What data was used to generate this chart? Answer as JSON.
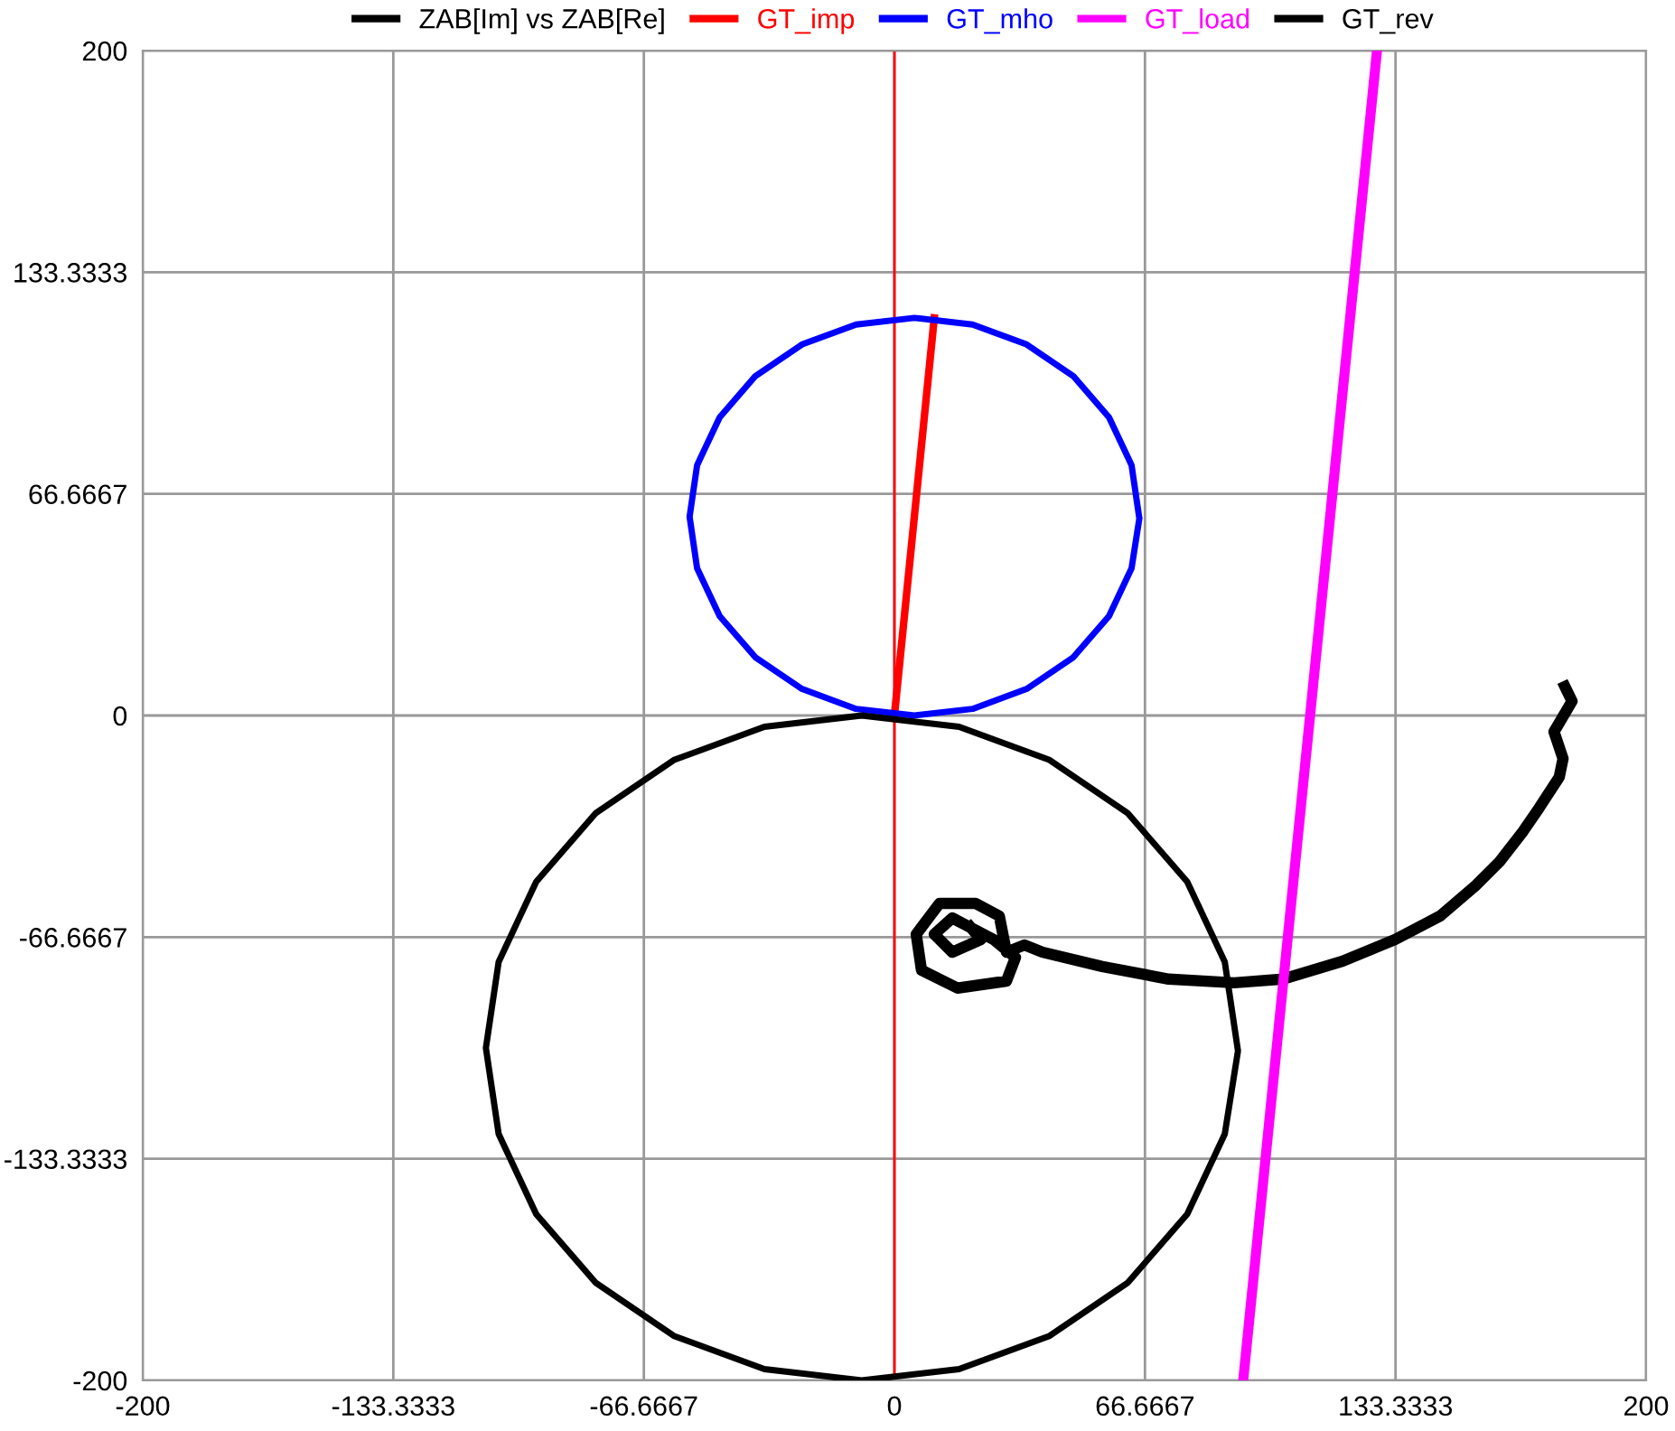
{
  "chart_data": {
    "type": "line",
    "xlim": [
      -200,
      200
    ],
    "ylim": [
      -200,
      200
    ],
    "xticks": [
      -200,
      -133.3333,
      -66.6667,
      0,
      66.6667,
      133.3333,
      200
    ],
    "yticks": [
      -200,
      -133.3333,
      -66.6667,
      0,
      66.6667,
      133.3333,
      200
    ],
    "grid": true,
    "legend": "top",
    "marker": "none",
    "line_style": "solid",
    "ref_lines": [
      {
        "axis": "x",
        "value": 0,
        "color": "#ff0000"
      }
    ],
    "series": [
      {
        "name": "ZAB[Im] vs ZAB[Re]",
        "color": "#000000",
        "x": [
          178.4,
          180.3,
          175.5,
          177.9,
          176.9,
          171.6,
          167.3,
          161,
          154.8,
          145.2,
          133.2,
          119.2,
          103.4,
          90.4,
          73,
          55.3,
          39.4,
          34.6,
          29.8,
          27.9,
          21.6,
          12,
          5.8,
          7.2,
          16.8,
          29.8,
          32.2,
          26.4,
          15.4,
          10.6,
          15.4,
          23,
          20.2
        ],
        "values": [
          8.7,
          4.3,
          -4.9,
          -13,
          -18.5,
          -27.7,
          -34.8,
          -44,
          -51,
          -60.3,
          -67.4,
          -73.9,
          -79.3,
          -80.4,
          -79.3,
          -75.5,
          -71.2,
          -69,
          -71.2,
          -60.3,
          -56.5,
          -56.5,
          -65.8,
          -76.6,
          -82,
          -79.9,
          -72.8,
          -67.4,
          -60.9,
          -65.8,
          -71.2,
          -67.4,
          -63.6
        ]
      },
      {
        "name": "GT_imp",
        "color": "#ff0000",
        "x": [
          0,
          10.6
        ],
        "values": [
          0,
          119.6
        ]
      },
      {
        "name": "GT_mho",
        "color": "#0000ff",
        "x": [
          65.1,
          63.1,
          57.1,
          47.6,
          35.2,
          20.8,
          5.3,
          -10.2,
          -24.6,
          -37.0,
          -46.5,
          -52.5,
          -54.5,
          -52.5,
          -46.5,
          -37.0,
          -24.6,
          -10.2,
          5.3,
          20.8,
          35.2,
          47.6,
          57.1,
          63.1,
          65.1
        ],
        "values": [
          59.8,
          75.3,
          89.7,
          102.1,
          111.6,
          117.6,
          119.6,
          117.6,
          111.6,
          102.1,
          89.7,
          75.3,
          59.8,
          44.3,
          29.9,
          17.5,
          8.0,
          2.0,
          0,
          2.0,
          8.0,
          17.5,
          29.9,
          44.3,
          58.8
        ]
      },
      {
        "name": "GT_load",
        "color": "#ff00ff",
        "x": [
          92.8,
          128.4
        ],
        "values": [
          -200,
          200
        ]
      },
      {
        "name": "GT_rev",
        "color": "#000000",
        "x": [
          91.3,
          87.9,
          77.9,
          62.0,
          41.3,
          17.2,
          -8.7,
          -34.6,
          -58.7,
          -79.4,
          -95.3,
          -105.3,
          -108.7,
          -105.3,
          -95.3,
          -79.4,
          -58.7,
          -34.6,
          -8.7,
          17.2,
          41.3,
          62.0,
          77.9,
          87.9,
          91.3
        ],
        "values": [
          -100,
          -74.1,
          -50,
          -29.3,
          -13.4,
          -3.4,
          0,
          -3.4,
          -13.4,
          -29.3,
          -50,
          -74.1,
          -100,
          -125.9,
          -150,
          -170.7,
          -186.6,
          -196.6,
          -200,
          -196.6,
          -186.6,
          -170.7,
          -150,
          -125.9,
          -101.7
        ]
      }
    ]
  }
}
